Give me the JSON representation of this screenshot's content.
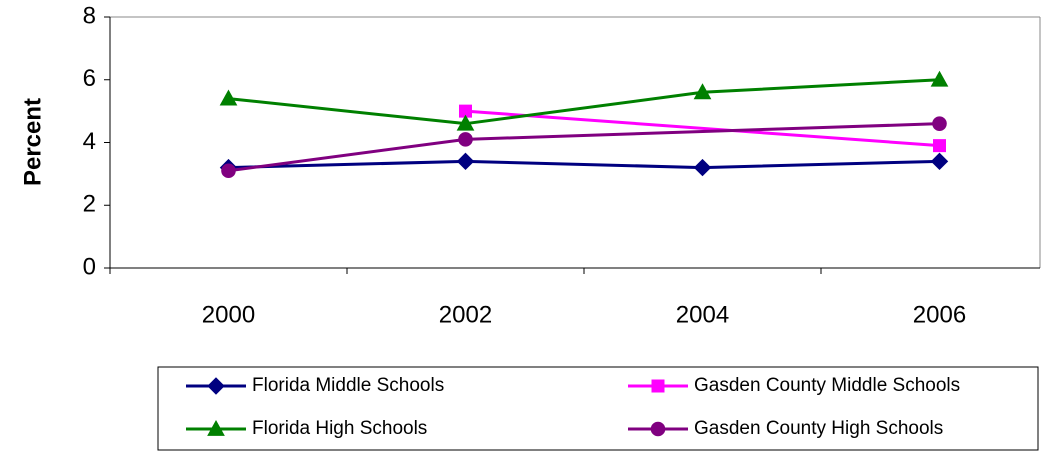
{
  "chart_data": {
    "type": "line",
    "y_label": "Percent",
    "categories": [
      "2000",
      "2002",
      "2004",
      "2006"
    ],
    "ylim": [
      0,
      8
    ],
    "yticks": [
      0,
      2,
      4,
      6,
      8
    ],
    "grid": false,
    "series": [
      {
        "name": "Florida Middle Schools",
        "color": "#000080",
        "marker": "diamond",
        "values": [
          3.2,
          3.4,
          3.2,
          3.4
        ]
      },
      {
        "name": "Gasden County Middle Schools",
        "color": "#ff00ff",
        "marker": "square",
        "x": [
          2002,
          2006
        ],
        "values": [
          5.0,
          3.9
        ]
      },
      {
        "name": "Florida High Schools",
        "color": "#008000",
        "marker": "triangle",
        "values": [
          5.4,
          4.6,
          5.6,
          6.0
        ]
      },
      {
        "name": "Gasden County High Schools",
        "color": "#800080",
        "marker": "circle",
        "x": [
          2000,
          2002,
          2006
        ],
        "values": [
          3.1,
          4.1,
          4.6
        ]
      }
    ]
  }
}
